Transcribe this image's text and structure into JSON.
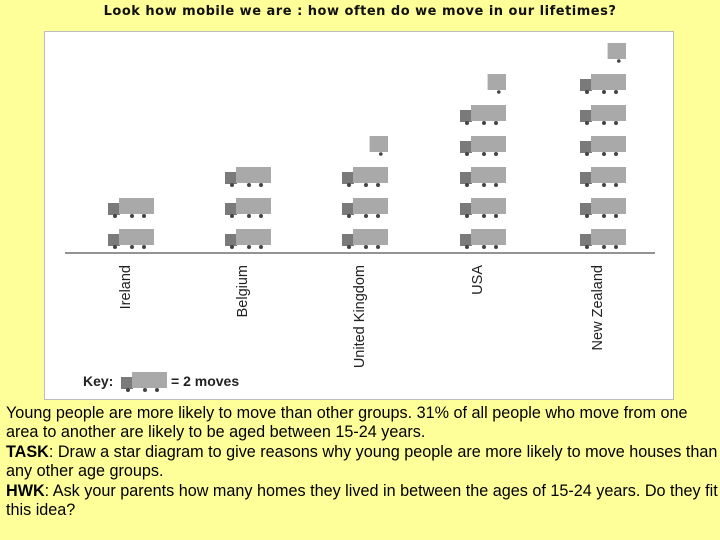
{
  "page": {
    "title": "Look how mobile we are : how often do we move in our lifetimes?"
  },
  "chart_data": {
    "type": "pictogram",
    "categories": [
      "Ireland",
      "Belgium",
      "United Kingdom",
      "USA",
      "New Zealand"
    ],
    "values": [
      4,
      6,
      7,
      11,
      13
    ],
    "icon": "truck-icon",
    "icon_value": 2,
    "key": {
      "label": "Key:",
      "text": "= 2 moves"
    },
    "colors": {
      "truck_box": "#a9a9a9",
      "truck_cab": "#7a7a7a",
      "wheel": "#444444",
      "baseline": "#555555"
    }
  },
  "body": {
    "intro": "Young people are more likely to move than other groups. 31% of all people who move from one area to another are likely to be aged between 15-24 years.",
    "task_label": "TASK",
    "task_text": ": Draw a star diagram to give reasons why young people are more likely to move houses than any other age groups.",
    "hwk_label": "HWK",
    "hwk_text": ": Ask your parents how many homes they lived in between the ages of 15-24 years. Do they fit this idea?"
  }
}
